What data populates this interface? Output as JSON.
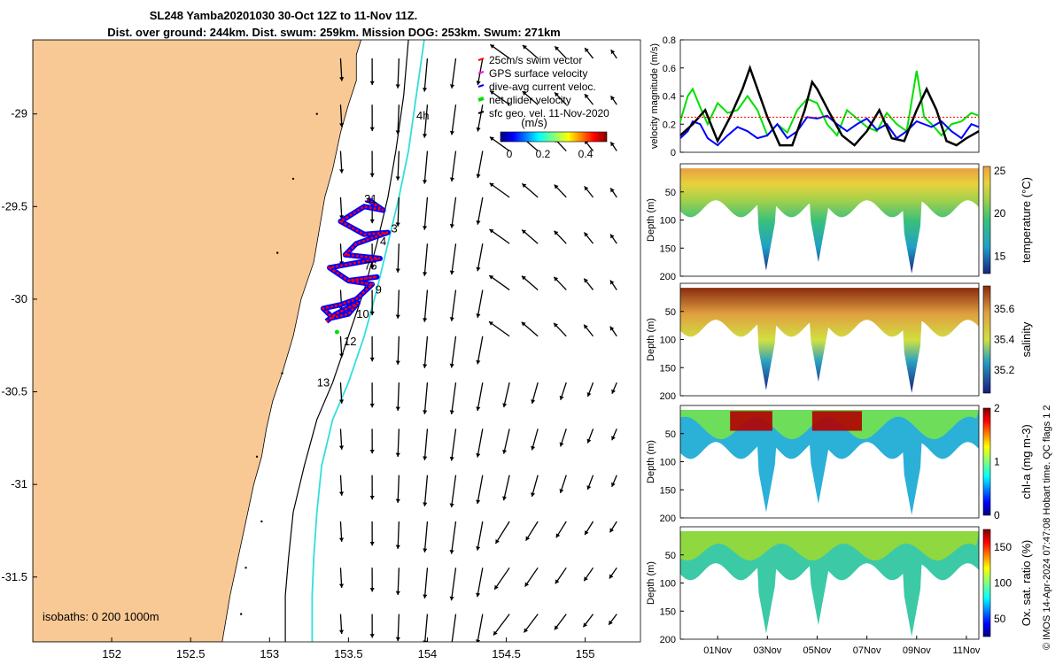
{
  "header": {
    "title_line1": "SL248 Yamba20201030 30-Oct 12Z to 11-Nov 11Z.",
    "title_line2": "Dist. over ground: 244km. Dist. swum: 259km. Mission DOG: 253km. Swum: 271km"
  },
  "credit": "© IMOS 14-Apr-2024 07:47:08 Hobart time. QC flags 1  2",
  "colors": {
    "land": "#f9c995",
    "swim": "#ff0000",
    "gps": "#ff00ff",
    "current": "#0000ff",
    "net": "#00e000",
    "iso200": "#000000",
    "iso1000": "#33dddd"
  },
  "chart_data": [
    {
      "type": "scatter",
      "title": "",
      "xlabel": "",
      "ylabel": "",
      "xlim": [
        151.5,
        155.35
      ],
      "ylim": [
        -31.85,
        -28.6
      ],
      "xticks": [
        "152",
        "152.5",
        "153",
        "153.5",
        "154",
        "154.5",
        "155"
      ],
      "xtick_values": [
        152,
        152.5,
        153,
        153.5,
        154,
        154.5,
        155
      ],
      "yticks": [
        "-29",
        "-29.5",
        "-30",
        "-30.5",
        "-31",
        "-31.5"
      ],
      "ytick_values": [
        -29,
        -29.5,
        -30,
        -30.5,
        -31,
        -31.5
      ],
      "legend": {
        "placement": "top-right",
        "entries": [
          "25cm/s swim vector",
          "GPS surface velocity",
          "dive-avg current veloc.",
          "net glider velocity",
          "sfc geo. vel. 11-Nov-2020"
        ]
      },
      "colorbar": {
        "label": "(m/s)",
        "ticks": [
          "0",
          "0.2",
          "0.4"
        ],
        "range": [
          0,
          0.5
        ]
      },
      "isobath_label": "isobaths: 0   200  1000m",
      "annotations": [
        "4h",
        "31",
        "3",
        "4",
        "76",
        "9",
        "10",
        "12",
        "13"
      ],
      "coastline": [
        [
          153.58,
          -28.6
        ],
        [
          153.55,
          -28.68
        ],
        [
          153.55,
          -28.82
        ],
        [
          153.5,
          -28.95
        ],
        [
          153.45,
          -29.1
        ],
        [
          153.4,
          -29.3
        ],
        [
          153.35,
          -29.45
        ],
        [
          153.32,
          -29.6
        ],
        [
          153.28,
          -29.8
        ],
        [
          153.2,
          -30.0
        ],
        [
          153.15,
          -30.2
        ],
        [
          153.08,
          -30.4
        ],
        [
          153.02,
          -30.55
        ],
        [
          152.98,
          -30.7
        ],
        [
          152.95,
          -30.85
        ],
        [
          152.9,
          -31.0
        ],
        [
          152.85,
          -31.2
        ],
        [
          152.8,
          -31.4
        ],
        [
          152.75,
          -31.6
        ],
        [
          152.7,
          -31.85
        ]
      ],
      "isobath_200": [
        [
          153.88,
          -28.6
        ],
        [
          153.85,
          -28.9
        ],
        [
          153.8,
          -29.2
        ],
        [
          153.75,
          -29.45
        ],
        [
          153.68,
          -29.7
        ],
        [
          153.6,
          -29.95
        ],
        [
          153.5,
          -30.2
        ],
        [
          153.4,
          -30.45
        ],
        [
          153.3,
          -30.65
        ],
        [
          153.22,
          -30.9
        ],
        [
          153.15,
          -31.15
        ],
        [
          153.12,
          -31.4
        ],
        [
          153.1,
          -31.6
        ],
        [
          153.1,
          -31.85
        ]
      ],
      "isobath_1000": [
        [
          153.98,
          -28.6
        ],
        [
          153.93,
          -28.9
        ],
        [
          153.88,
          -29.2
        ],
        [
          153.82,
          -29.45
        ],
        [
          153.75,
          -29.7
        ],
        [
          153.68,
          -29.95
        ],
        [
          153.6,
          -30.2
        ],
        [
          153.5,
          -30.45
        ],
        [
          153.4,
          -30.65
        ],
        [
          153.33,
          -30.9
        ],
        [
          153.3,
          -31.15
        ],
        [
          153.28,
          -31.4
        ],
        [
          153.27,
          -31.6
        ],
        [
          153.27,
          -31.85
        ]
      ],
      "glider_track": [
        [
          153.62,
          -29.46
        ],
        [
          153.72,
          -29.52
        ],
        [
          153.6,
          -29.5
        ],
        [
          153.45,
          -29.58
        ],
        [
          153.6,
          -29.65
        ],
        [
          153.75,
          -29.64
        ],
        [
          153.55,
          -29.7
        ],
        [
          153.48,
          -29.76
        ],
        [
          153.7,
          -29.78
        ],
        [
          153.38,
          -29.83
        ],
        [
          153.5,
          -29.9
        ],
        [
          153.68,
          -29.88
        ],
        [
          153.5,
          -29.9
        ],
        [
          153.65,
          -29.92
        ],
        [
          153.55,
          -30.0
        ],
        [
          153.45,
          -30.03
        ],
        [
          153.34,
          -30.05
        ],
        [
          153.4,
          -30.1
        ],
        [
          153.5,
          -30.08
        ],
        [
          153.56,
          -30.02
        ],
        [
          153.42,
          -30.08
        ],
        [
          153.36,
          -30.12
        ]
      ],
      "vector_field": {
        "lon": [
          153.45,
          153.65,
          153.82,
          154.0,
          154.18,
          154.35,
          154.52,
          154.7,
          154.88,
          155.05,
          155.2
        ],
        "lat": [
          -28.7,
          -28.95,
          -29.2,
          -29.45,
          -29.7,
          -29.95,
          -30.2,
          -30.45,
          -30.7,
          -30.95,
          -31.2,
          -31.45,
          -31.7
        ],
        "note_units": "m/s"
      }
    },
    {
      "type": "line",
      "title": "",
      "xlabel": "",
      "ylabel": "velocity magnitude (m/s)",
      "ylim": [
        0,
        0.8
      ],
      "yticks": [
        "0",
        "0.2",
        "0.4",
        "0.6",
        "0.8"
      ],
      "xlim_days": [
        30.5,
        42.5
      ],
      "series": [
        {
          "color": "#00e000",
          "x": [
            30.5,
            30.8,
            31.0,
            31.3,
            31.6,
            32.0,
            32.4,
            32.8,
            33.2,
            33.6,
            34.0,
            34.4,
            34.8,
            35.2,
            35.6,
            36.0,
            36.4,
            36.8,
            37.2,
            37.6,
            38.0,
            38.4,
            38.8,
            39.2,
            39.6,
            40.0,
            40.3,
            40.6,
            41.0,
            41.4,
            41.8,
            42.2,
            42.5
          ],
          "values": [
            0.22,
            0.4,
            0.45,
            0.32,
            0.2,
            0.35,
            0.28,
            0.3,
            0.4,
            0.3,
            0.12,
            0.2,
            0.14,
            0.3,
            0.38,
            0.35,
            0.2,
            0.12,
            0.3,
            0.24,
            0.18,
            0.15,
            0.28,
            0.2,
            0.15,
            0.58,
            0.25,
            0.2,
            0.12,
            0.2,
            0.22,
            0.28,
            0.26
          ]
        },
        {
          "color": "#0000ff",
          "x": [
            30.5,
            30.8,
            31.0,
            31.3,
            31.6,
            32.0,
            32.4,
            32.8,
            33.2,
            33.6,
            34.0,
            34.4,
            34.8,
            35.2,
            35.6,
            36.0,
            36.4,
            36.8,
            37.2,
            37.6,
            38.0,
            38.4,
            38.8,
            39.2,
            39.6,
            40.0,
            40.3,
            40.6,
            41.0,
            41.4,
            41.8,
            42.2,
            42.5
          ],
          "values": [
            0.1,
            0.15,
            0.22,
            0.2,
            0.1,
            0.05,
            0.12,
            0.18,
            0.15,
            0.1,
            0.12,
            0.2,
            0.1,
            0.15,
            0.25,
            0.24,
            0.26,
            0.2,
            0.15,
            0.2,
            0.24,
            0.16,
            0.2,
            0.1,
            0.15,
            0.22,
            0.2,
            0.18,
            0.22,
            0.15,
            0.1,
            0.2,
            0.18
          ]
        },
        {
          "color": "#000000",
          "x": [
            30.5,
            31.0,
            31.5,
            32.0,
            32.5,
            33.0,
            33.3,
            33.6,
            34.0,
            34.5,
            35.0,
            35.5,
            35.8,
            36.0,
            36.5,
            37.0,
            37.5,
            38.0,
            38.5,
            39.0,
            39.5,
            40.0,
            40.4,
            40.8,
            41.2,
            41.6,
            42.0,
            42.5
          ],
          "values": [
            0.12,
            0.2,
            0.3,
            0.08,
            0.25,
            0.45,
            0.6,
            0.45,
            0.25,
            0.05,
            0.05,
            0.3,
            0.5,
            0.45,
            0.28,
            0.12,
            0.05,
            0.15,
            0.3,
            0.1,
            0.08,
            0.3,
            0.45,
            0.3,
            0.08,
            0.05,
            0.1,
            0.15
          ]
        },
        {
          "color": "#ff0000",
          "x": [
            30.5,
            42.5
          ],
          "values": [
            0.25,
            0.25
          ]
        }
      ]
    },
    {
      "type": "heatmap",
      "ylabel": "Depth (m)",
      "colorbar_label": "temperature (°C)",
      "colorbar_ticks": [
        "15",
        "20",
        "25"
      ],
      "colorbar_range": [
        13,
        25.5
      ],
      "yticks": [
        "50",
        "100",
        "150",
        "200"
      ],
      "ylim": [
        0,
        200
      ]
    },
    {
      "type": "heatmap",
      "ylabel": "Depth (m)",
      "colorbar_label": "salinity",
      "colorbar_ticks": [
        "35.2",
        "35.4",
        "35.6"
      ],
      "colorbar_range": [
        35.05,
        35.75
      ],
      "yticks": [
        "50",
        "100",
        "150",
        "200"
      ],
      "ylim": [
        0,
        200
      ]
    },
    {
      "type": "heatmap",
      "ylabel": "Depth (m)",
      "colorbar_label": "chl-a (mg m-3)",
      "colorbar_ticks": [
        "0",
        "1",
        "2"
      ],
      "colorbar_range": [
        0,
        2
      ],
      "yticks": [
        "50",
        "100",
        "150",
        "200"
      ],
      "ylim": [
        0,
        200
      ]
    },
    {
      "type": "heatmap",
      "ylabel": "Depth (m)",
      "colorbar_label": "Ox. sat. ratio (%)",
      "colorbar_ticks": [
        "50",
        "100",
        "150"
      ],
      "colorbar_range": [
        25,
        175
      ],
      "yticks": [
        "50",
        "100",
        "150",
        "200"
      ],
      "ylim": [
        0,
        200
      ],
      "xticks": [
        "01Nov",
        "03Nov",
        "05Nov",
        "07Nov",
        "09Nov",
        "11Nov"
      ],
      "xtick_days": [
        32,
        34,
        36,
        38,
        40,
        42
      ]
    }
  ]
}
